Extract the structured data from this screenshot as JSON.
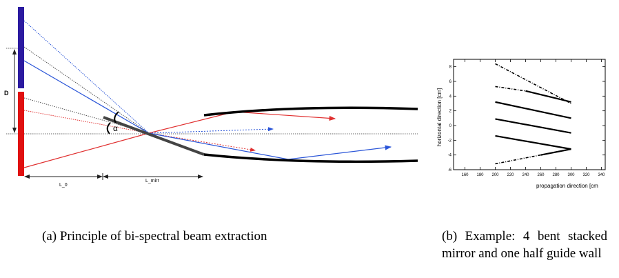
{
  "figure_a": {
    "caption": "(a) Principle of bi-spectral beam extraction",
    "labels": {
      "d": "D",
      "alpha": "α",
      "l0": "L_0",
      "lmirr": "L_mirr"
    },
    "colors": {
      "cold_source": "#2b1aa0",
      "thermal_source": "#e01010",
      "blue_ray": "#2a55d8",
      "red_ray": "#e03030"
    }
  },
  "figure_b": {
    "caption": "(b) Example: 4 bent stacked mirror and one half guide wall",
    "xlabel": "propagation direction [cm",
    "ylabel": "horizontal direction [cm]",
    "x_ticks": [
      "160",
      "180",
      "200",
      "220",
      "240",
      "260",
      "280",
      "300",
      "320",
      "340"
    ],
    "y_ticks": [
      "8",
      "6",
      "4",
      "2",
      "0",
      "-2",
      "-4",
      "-6"
    ]
  },
  "chart_data": {
    "type": "line",
    "xlabel": "propagation direction [cm",
    "ylabel": "horizontal direction [cm]",
    "xlim": [
      145,
      345
    ],
    "ylim": [
      -6,
      9
    ],
    "series": [
      {
        "style": "dash-dot",
        "x": [
          200,
          300
        ],
        "y": [
          8.4,
          3.0
        ]
      },
      {
        "style": "dash-dot",
        "x": [
          200,
          240
        ],
        "y": [
          5.3,
          4.7
        ]
      },
      {
        "style": "solid",
        "x": [
          240,
          300
        ],
        "y": [
          4.7,
          3.2
        ]
      },
      {
        "style": "solid",
        "x": [
          200,
          300
        ],
        "y": [
          3.2,
          1.0
        ]
      },
      {
        "style": "solid",
        "x": [
          200,
          300
        ],
        "y": [
          0.9,
          -1.0
        ]
      },
      {
        "style": "solid",
        "x": [
          200,
          300
        ],
        "y": [
          -1.4,
          -3.2
        ]
      },
      {
        "style": "solid",
        "x": [
          260,
          300
        ],
        "y": [
          -4.0,
          -3.2
        ]
      },
      {
        "style": "dash-dot",
        "x": [
          200,
          260
        ],
        "y": [
          -5.2,
          -4.0
        ]
      }
    ]
  }
}
